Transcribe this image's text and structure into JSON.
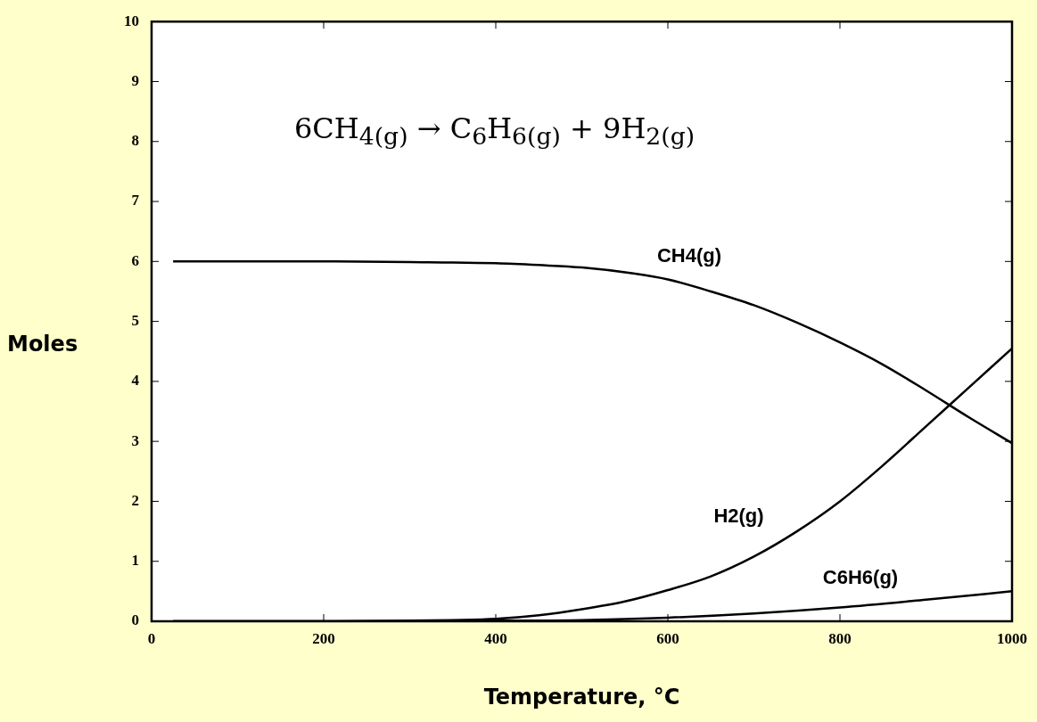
{
  "chart_data": {
    "type": "line",
    "xlabel": "Temperature, °C",
    "ylabel": "Moles",
    "xlim": [
      0,
      1000
    ],
    "xticks": [
      0,
      200,
      400,
      600,
      800,
      1000
    ],
    "ylim": [
      0,
      10
    ],
    "yticks": [
      0,
      1,
      2,
      3,
      4,
      5,
      6,
      7,
      8,
      9,
      10
    ],
    "grid": false,
    "legend": false,
    "marker": "none",
    "line_style": "solid",
    "series": [
      {
        "name": "CH4(g)",
        "color": "#000000",
        "x": [
          25,
          200,
          300,
          400,
          450,
          500,
          560,
          600,
          650,
          700,
          750,
          800,
          850,
          900,
          950,
          1000
        ],
        "values": [
          6.0,
          6.0,
          5.99,
          5.97,
          5.94,
          5.9,
          5.8,
          5.7,
          5.5,
          5.27,
          4.98,
          4.65,
          4.28,
          3.85,
          3.4,
          2.97
        ]
      },
      {
        "name": "H2(g)",
        "color": "#000000",
        "x": [
          25,
          200,
          300,
          350,
          400,
          450,
          500,
          550,
          600,
          650,
          700,
          750,
          800,
          850,
          900,
          950,
          1000
        ],
        "values": [
          0,
          0,
          0.01,
          0.02,
          0.04,
          0.1,
          0.2,
          0.33,
          0.52,
          0.75,
          1.08,
          1.5,
          2.0,
          2.6,
          3.25,
          3.9,
          4.55
        ]
      },
      {
        "name": "C6H6(g)",
        "color": "#000000",
        "x": [
          25,
          300,
          400,
          500,
          600,
          700,
          800,
          900,
          1000
        ],
        "values": [
          0,
          0,
          0.01,
          0.02,
          0.06,
          0.13,
          0.23,
          0.36,
          0.5
        ]
      }
    ],
    "annotations": [
      "6CH$_{4(g)}$ → C$_{6}$H$_{6(g)}$ + 9H$_{2(g)}$"
    ]
  }
}
